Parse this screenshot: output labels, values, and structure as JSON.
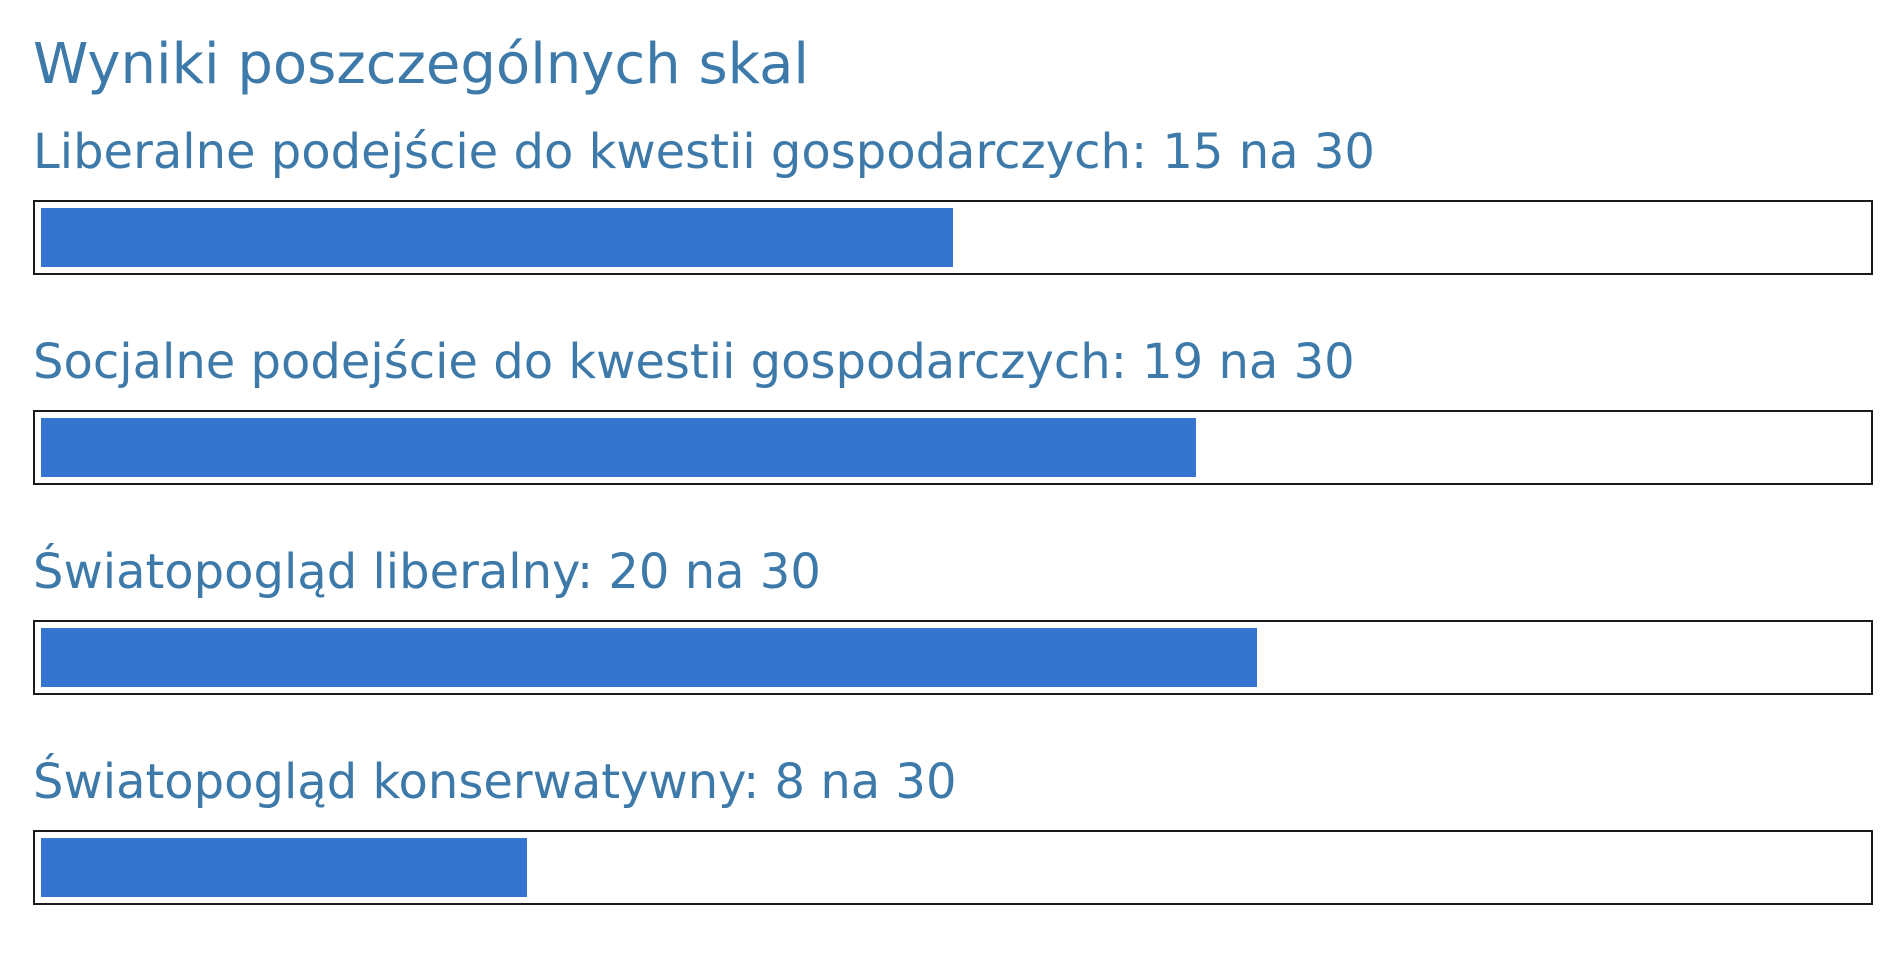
{
  "title": "Wyniki poszczególnych skal",
  "accent_color": "#3575d0",
  "text_color": "#3d7aaa",
  "scales": [
    {
      "label": "Liberalne podejście do kwestii gospodarczych: 15 na 30",
      "score": 15,
      "max": 30
    },
    {
      "label": "Socjalne podejście do kwestii gospodarczych: 19 na 30",
      "score": 19,
      "max": 30
    },
    {
      "label": "Światopogląd liberalny: 20 na 30",
      "score": 20,
      "max": 30
    },
    {
      "label": "Światopogląd konserwatywny: 8 na 30",
      "score": 8,
      "max": 30
    }
  ]
}
